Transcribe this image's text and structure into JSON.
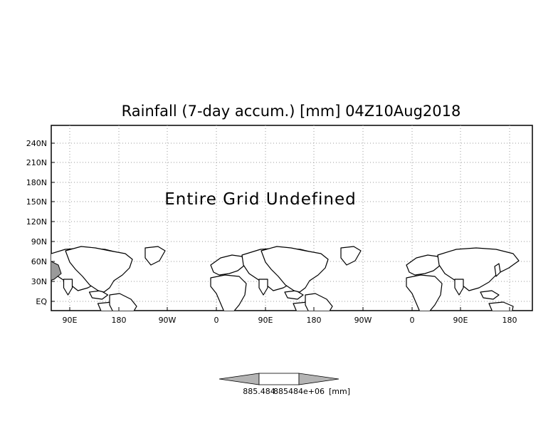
{
  "map": {
    "title": "Rainfall (7-day accum.) [mm] 04Z10Aug2018",
    "message": "Entire Grid Undefined",
    "y_ticks": [
      "240N",
      "210N",
      "180N",
      "150N",
      "120N",
      "90N",
      "60N",
      "30N",
      "EQ"
    ],
    "x_ticks": [
      "90E",
      "180",
      "90W",
      "0",
      "90E",
      "180",
      "90W",
      "0",
      "90E",
      "180"
    ],
    "colors": {
      "land_fill": "#ffffff",
      "coast": "#000000",
      "shaded_region": "#9a9a9a",
      "grid": "#9a9a9a"
    }
  },
  "colorbar": {
    "min_label": "885.484",
    "max_label": "885484e+06",
    "unit_label": "[mm]",
    "colors": {
      "left_triangle": "#b4b4b4",
      "middle": "#ffffff",
      "right_triangle": "#b4b4b4"
    }
  }
}
